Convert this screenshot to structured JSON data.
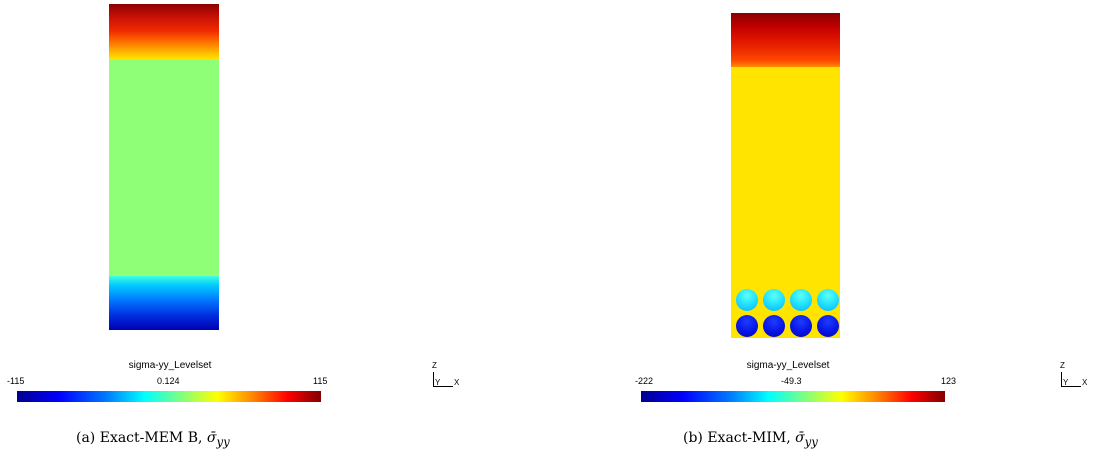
{
  "panels": [
    {
      "colorbar": {
        "title": "sigma-yy_Levelset",
        "min": "-115",
        "mid": "0.124",
        "max": "115"
      },
      "axes": {
        "z": "Z",
        "y": "Y",
        "x": "X"
      },
      "caption": {
        "label": "(a) Exact-MEM B, ",
        "symbol": "σ̄",
        "subscript": "yy"
      }
    },
    {
      "colorbar": {
        "title": "sigma-yy_Levelset",
        "min": "-222",
        "mid": "-49.3",
        "max": "123"
      },
      "axes": {
        "z": "Z",
        "y": "Y",
        "x": "X"
      },
      "caption": {
        "label": "(b) Exact-MIM, ",
        "symbol": "σ̄",
        "subscript": "yy"
      }
    }
  ]
}
